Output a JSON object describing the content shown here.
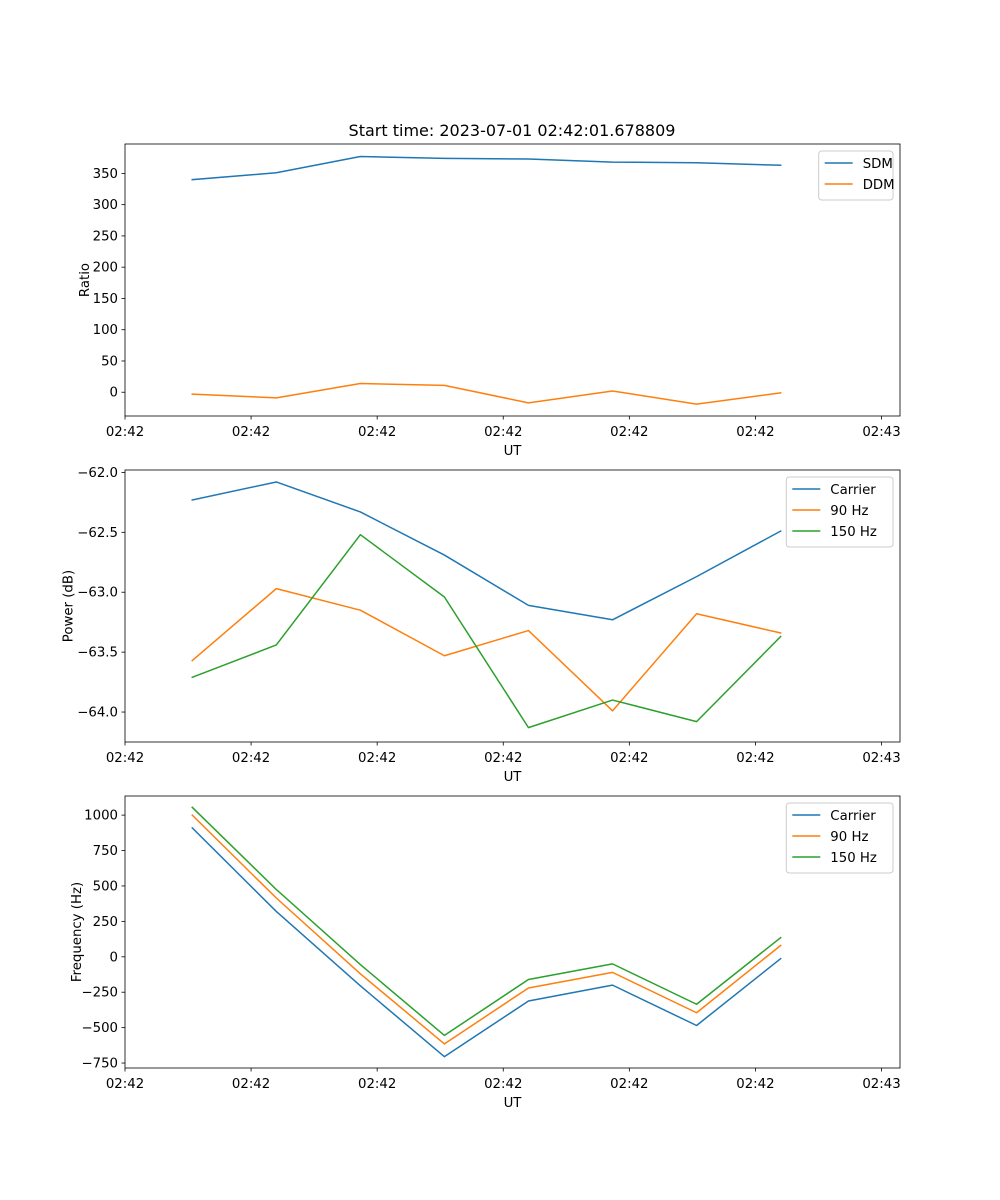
{
  "figure_title": "Start time: 2023-07-01 02:42:01.678809",
  "colors": {
    "blue": "#1f77b4",
    "orange": "#ff7f0e",
    "green": "#2ca02c"
  },
  "chart_data": [
    {
      "type": "line",
      "title": "Start time: 2023-07-01 02:42:01.678809",
      "xlabel": "UT",
      "ylabel": "Ratio",
      "x": [
        1,
        2,
        3,
        4,
        5,
        6,
        7,
        8
      ],
      "xlim": [
        0.2,
        9.42
      ],
      "xticks": [
        0.2,
        1.7,
        3.2,
        4.7,
        6.2,
        7.7,
        9.2
      ],
      "xtick_labels": [
        "02:42",
        "02:42",
        "02:42",
        "02:42",
        "02:42",
        "02:42",
        "02:43"
      ],
      "ylim": [
        -38,
        397
      ],
      "yticks": [
        0,
        50,
        100,
        150,
        200,
        250,
        300,
        350
      ],
      "ytick_labels": [
        "0",
        "50",
        "100",
        "150",
        "200",
        "250",
        "300",
        "350"
      ],
      "legend": "upper right",
      "series": [
        {
          "name": "SDM",
          "color": "#1f77b4",
          "values": [
            340,
            351,
            377,
            374,
            373,
            368,
            367,
            363
          ]
        },
        {
          "name": "DDM",
          "color": "#ff7f0e",
          "values": [
            -3,
            -9,
            14,
            11,
            -17,
            2,
            -19,
            -1
          ]
        }
      ]
    },
    {
      "type": "line",
      "title": "",
      "xlabel": "UT",
      "ylabel": "Power (dB)",
      "x": [
        1,
        2,
        3,
        4,
        5,
        6,
        7,
        8
      ],
      "xlim": [
        0.2,
        9.42
      ],
      "xticks": [
        0.2,
        1.7,
        3.2,
        4.7,
        6.2,
        7.7,
        9.2
      ],
      "xtick_labels": [
        "02:42",
        "02:42",
        "02:42",
        "02:42",
        "02:42",
        "02:42",
        "02:43"
      ],
      "ylim": [
        -64.25,
        -61.98
      ],
      "yticks": [
        -64.0,
        -63.5,
        -63.0,
        -62.5,
        -62.0
      ],
      "ytick_labels": [
        "−64.0",
        "−63.5",
        "−63.0",
        "−62.5",
        "−62.0"
      ],
      "legend": "upper right",
      "series": [
        {
          "name": "Carrier",
          "color": "#1f77b4",
          "values": [
            -62.23,
            -62.08,
            -62.33,
            -62.69,
            -63.11,
            -63.23,
            -62.87,
            -62.49
          ]
        },
        {
          "name": "90 Hz",
          "color": "#ff7f0e",
          "values": [
            -63.57,
            -62.97,
            -63.15,
            -63.53,
            -63.32,
            -63.99,
            -63.18,
            -63.34
          ]
        },
        {
          "name": "150 Hz",
          "color": "#2ca02c",
          "values": [
            -63.71,
            -63.44,
            -62.52,
            -63.04,
            -64.13,
            -63.9,
            -64.08,
            -63.37
          ]
        }
      ]
    },
    {
      "type": "line",
      "title": "",
      "xlabel": "UT",
      "ylabel": "Frequency (Hz)",
      "x": [
        1,
        2,
        3,
        4,
        5,
        6,
        7,
        8
      ],
      "xlim": [
        0.2,
        9.42
      ],
      "xticks": [
        0.2,
        1.7,
        3.2,
        4.7,
        6.2,
        7.7,
        9.2
      ],
      "xtick_labels": [
        "02:42",
        "02:42",
        "02:42",
        "02:42",
        "02:42",
        "02:42",
        "02:43"
      ],
      "ylim": [
        -785,
        1135
      ],
      "yticks": [
        -750,
        -500,
        -250,
        0,
        250,
        500,
        750,
        1000
      ],
      "ytick_labels": [
        "−750",
        "−500",
        "−250",
        "0",
        "250",
        "500",
        "750",
        "1000"
      ],
      "legend": "upper right",
      "series": [
        {
          "name": "Carrier",
          "color": "#1f77b4",
          "values": [
            910,
            320,
            -205,
            -705,
            -312,
            -200,
            -485,
            -13
          ]
        },
        {
          "name": "90 Hz",
          "color": "#ff7f0e",
          "values": [
            1000,
            415,
            -120,
            -615,
            -220,
            -110,
            -395,
            80
          ]
        },
        {
          "name": "150 Hz",
          "color": "#2ca02c",
          "values": [
            1055,
            475,
            -55,
            -555,
            -160,
            -50,
            -335,
            135
          ]
        }
      ]
    }
  ]
}
